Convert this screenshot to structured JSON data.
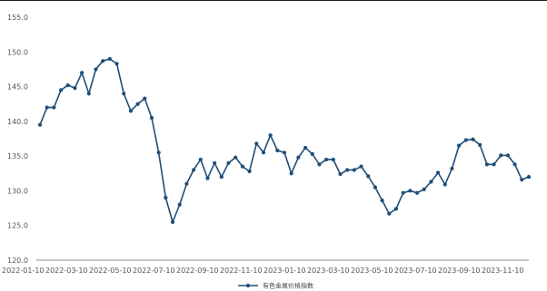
{
  "chart_data": {
    "type": "line",
    "title": "",
    "xlabel": "",
    "ylabel": "",
    "ylim": [
      120,
      155
    ],
    "y_ticks": [
      "155.0",
      "150.0",
      "145.0",
      "140.0",
      "135.0",
      "130.0",
      "125.0",
      "120.0"
    ],
    "x_tick_labels": [
      "2022-01-10",
      "2022-03-10",
      "2022-05-10",
      "2022-07-10",
      "2022-09-10",
      "2022-11-10",
      "2023-01-10",
      "2023-03-10",
      "2023-05-10",
      "2023-07-10",
      "2023-09-10",
      "2023-11-10"
    ],
    "legend_position": "bottom-center",
    "grid": false,
    "color": "#1f4e79",
    "series": [
      {
        "name": "有色金属价格指数",
        "values": [
          139.5,
          142,
          142,
          144.5,
          145.2,
          144.8,
          147,
          144,
          147.5,
          148.7,
          149,
          148.3,
          144,
          141.5,
          142.5,
          143.3,
          140.5,
          135.5,
          129,
          125.5,
          128,
          131,
          133,
          134.5,
          131.8,
          134,
          132,
          134,
          134.8,
          133.5,
          132.8,
          136.8,
          135.5,
          138,
          135.8,
          135.5,
          132.5,
          134.8,
          136.2,
          135.3,
          133.8,
          134.5,
          134.5,
          132.4,
          133,
          133,
          133.5,
          132.1,
          130.5,
          128.6,
          126.7,
          127.4,
          129.7,
          130,
          129.7,
          130.2,
          131.3,
          132.6,
          130.9,
          133.2,
          136.5,
          137.3,
          137.4,
          136.6,
          133.8,
          133.8,
          135.1,
          135.1,
          133.8,
          131.6,
          132
        ]
      }
    ]
  }
}
